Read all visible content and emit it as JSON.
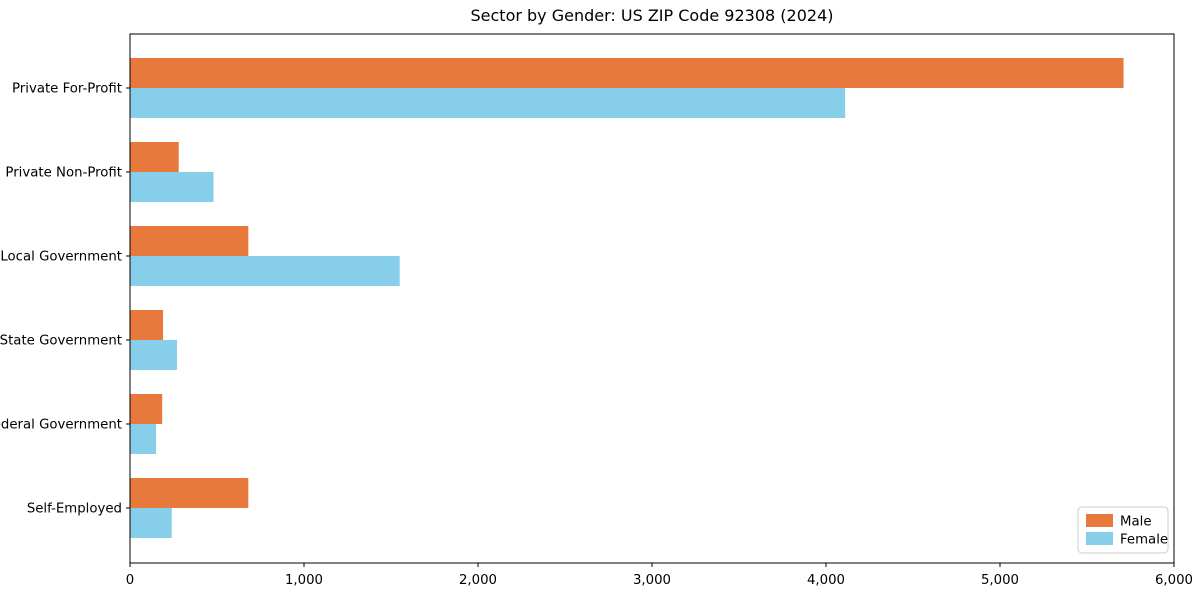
{
  "chart_data": {
    "type": "bar",
    "orientation": "horizontal",
    "title": "Sector by Gender: US ZIP Code 92308 (2024)",
    "xlabel": "",
    "ylabel": "",
    "grid": false,
    "categories": [
      "Private For-Profit",
      "Private Non-Profit",
      "Local Government",
      "State Government",
      "Federal Government",
      "Self-Employed"
    ],
    "series": [
      {
        "name": "Male",
        "color": "#E8793D",
        "values": [
          5710,
          280,
          680,
          190,
          185,
          680
        ]
      },
      {
        "name": "Female",
        "color": "#87CEEB",
        "values": [
          4110,
          480,
          1550,
          270,
          150,
          240
        ]
      }
    ],
    "xlim": [
      0,
      6000
    ],
    "xticks": [
      0,
      1000,
      2000,
      3000,
      4000,
      5000,
      6000
    ],
    "xtick_labels": [
      "0",
      "1,000",
      "2,000",
      "3,000",
      "4,000",
      "5,000",
      "6,000"
    ],
    "legend": {
      "position": "lower right",
      "entries": [
        "Male",
        "Female"
      ]
    },
    "colors": {
      "axis": "#000000",
      "legend_border": "#cccccc",
      "background": "#ffffff"
    }
  }
}
